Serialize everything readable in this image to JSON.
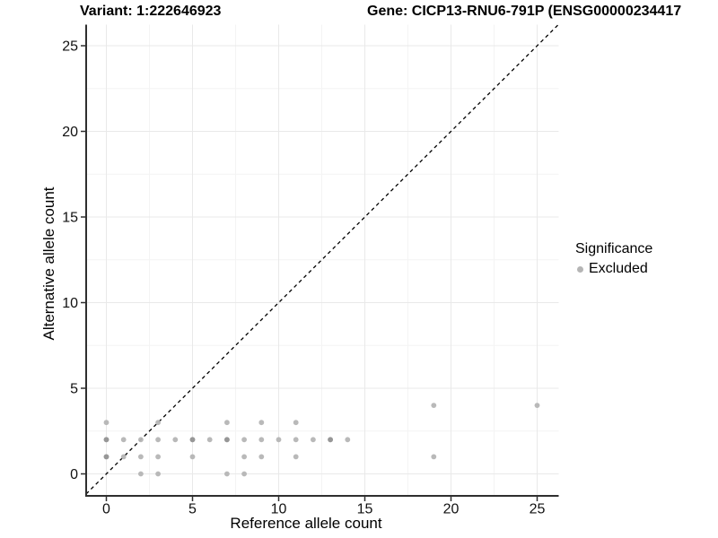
{
  "header": {
    "variant_title": "Variant: 1:222646923",
    "gene_title": "Gene: CICP13-RNU6-791P (ENSG00000234417"
  },
  "legend": {
    "title": "Significance",
    "items": [
      {
        "label": "Excluded",
        "marker_color": "#b5b5b5"
      }
    ]
  },
  "chart_data": {
    "type": "scatter",
    "title": "Variant: 1:222646923 / Gene: CICP13-RNU6-791P",
    "xlabel": "Reference allele count",
    "ylabel": "Alternative allele count",
    "x_ticks": [
      0,
      5,
      10,
      15,
      20,
      25
    ],
    "y_ticks": [
      0,
      5,
      10,
      15,
      20,
      25
    ],
    "xlim": [
      -1.25,
      26.25
    ],
    "ylim": [
      -1.25,
      26.25
    ],
    "grid": "major+minor",
    "legend_position": "right",
    "identity_line": {
      "style": "dashed",
      "slope": 1,
      "intercept": 0,
      "color": "#000000"
    },
    "series": [
      {
        "name": "Excluded",
        "color": "#b5b5b5",
        "points": [
          [
            2,
            0
          ],
          [
            3,
            0
          ],
          [
            7,
            0
          ],
          [
            8,
            0
          ],
          [
            0,
            1
          ],
          [
            1,
            1
          ],
          [
            2,
            1
          ],
          [
            3,
            1
          ],
          [
            5,
            1
          ],
          [
            8,
            1
          ],
          [
            9,
            1
          ],
          [
            11,
            1
          ],
          [
            19,
            1
          ],
          [
            0,
            2
          ],
          [
            1,
            2
          ],
          [
            2,
            2
          ],
          [
            3,
            2
          ],
          [
            4,
            2
          ],
          [
            5,
            2
          ],
          [
            6,
            2
          ],
          [
            7,
            2
          ],
          [
            8,
            2
          ],
          [
            9,
            2
          ],
          [
            10,
            2
          ],
          [
            11,
            2
          ],
          [
            12,
            2
          ],
          [
            13,
            2
          ],
          [
            14,
            2
          ],
          [
            0,
            3
          ],
          [
            3,
            3
          ],
          [
            7,
            3
          ],
          [
            9,
            3
          ],
          [
            11,
            3
          ],
          [
            19,
            4
          ],
          [
            25,
            4
          ]
        ],
        "overplotted_points": [
          [
            0,
            1
          ],
          [
            0,
            2
          ],
          [
            5,
            2
          ],
          [
            7,
            2
          ],
          [
            13,
            2
          ]
        ]
      }
    ]
  }
}
